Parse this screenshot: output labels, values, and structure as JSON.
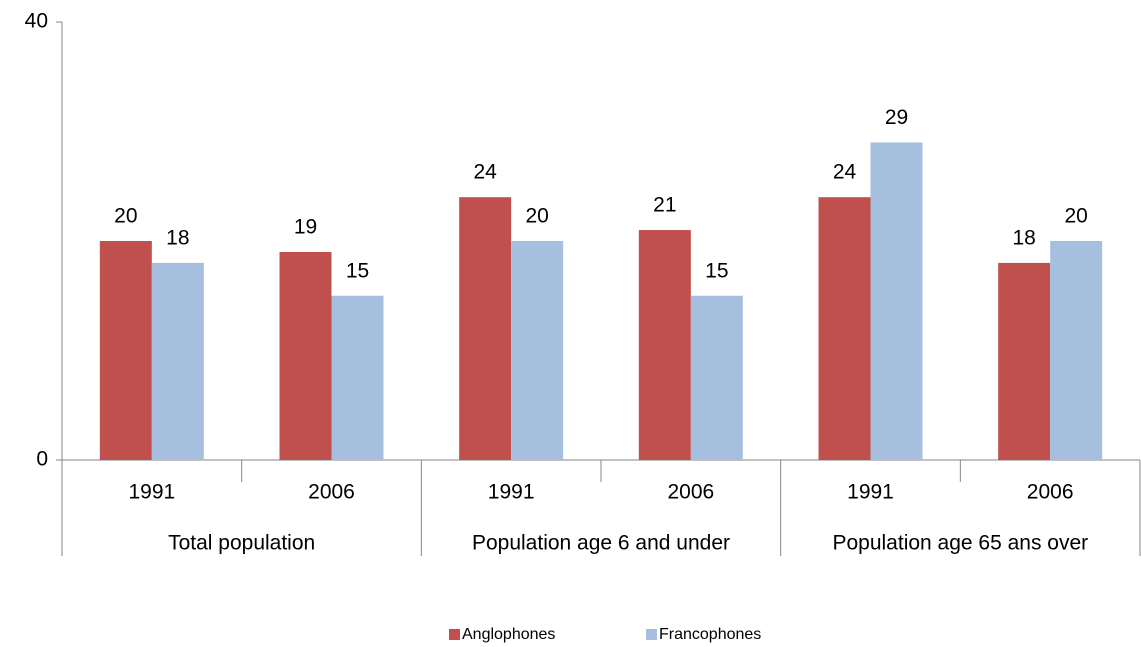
{
  "chart_data": {
    "type": "bar",
    "categories": [
      "1991",
      "2006",
      "1991",
      "2006",
      "1991",
      "2006"
    ],
    "groups": [
      "Total population",
      "Population age 6 and under",
      "Population age 65 ans over"
    ],
    "series": [
      {
        "name": "Anglophones",
        "color": "#c0504d",
        "values": [
          20,
          19,
          24,
          21,
          24,
          18
        ]
      },
      {
        "name": "Francophones",
        "color": "#a7bfdf",
        "values": [
          18,
          15,
          20,
          15,
          29,
          20
        ]
      }
    ],
    "ylim": [
      0,
      40
    ],
    "yticks": [
      0,
      40
    ],
    "legend": "bottom"
  }
}
